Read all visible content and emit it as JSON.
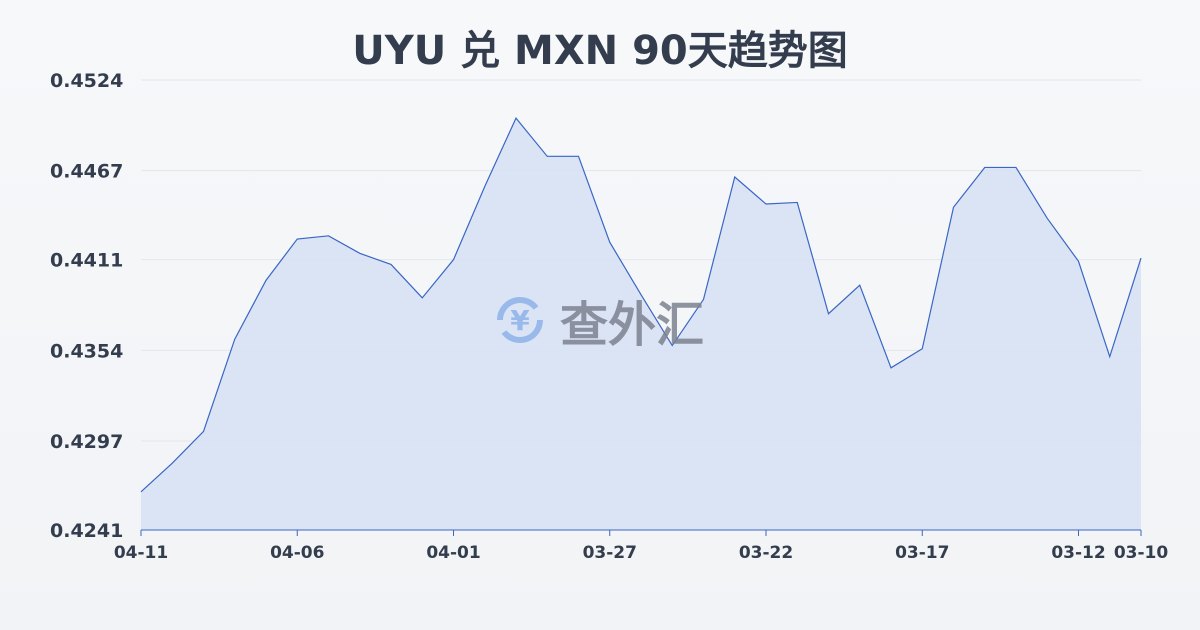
{
  "chart_data": {
    "type": "area",
    "title": "UYU 兑 MXN 90天趋势图",
    "xlabel": "",
    "ylabel": "",
    "ylim": [
      0.4241,
      0.4524
    ],
    "yticks": [
      "0.4524",
      "0.4467",
      "0.4411",
      "0.4354",
      "0.4297",
      "0.4241"
    ],
    "xticks": [
      "04-11",
      "04-06",
      "04-01",
      "03-27",
      "03-22",
      "03-17",
      "03-12",
      "03-10"
    ],
    "grid": true,
    "x": [
      "04-11",
      "04-10",
      "04-09",
      "04-08",
      "04-07",
      "04-06",
      "04-05",
      "04-04",
      "04-03",
      "04-02",
      "04-01",
      "03-31",
      "03-30",
      "03-29",
      "03-28",
      "03-27",
      "03-26",
      "03-25",
      "03-24",
      "03-23",
      "03-22",
      "03-21",
      "03-20",
      "03-19",
      "03-18",
      "03-17",
      "03-16",
      "03-15",
      "03-14",
      "03-13",
      "03-12",
      "03-11",
      "03-10"
    ],
    "values": [
      0.4265,
      0.4283,
      0.4303,
      0.4361,
      0.4398,
      0.4424,
      0.4426,
      0.4415,
      0.4408,
      0.4387,
      0.4411,
      0.4457,
      0.45,
      0.4476,
      0.4476,
      0.4422,
      0.4389,
      0.4357,
      0.4386,
      0.4463,
      0.4446,
      0.4447,
      0.4377,
      0.4395,
      0.4343,
      0.4355,
      0.4444,
      0.4469,
      0.4469,
      0.4437,
      0.441,
      0.435,
      0.4412
    ],
    "colors": {
      "line": "#3a66c4",
      "fill": "#d6e0f5"
    }
  },
  "watermark": {
    "text": "查外汇",
    "icon": "yen-exchange-icon"
  }
}
